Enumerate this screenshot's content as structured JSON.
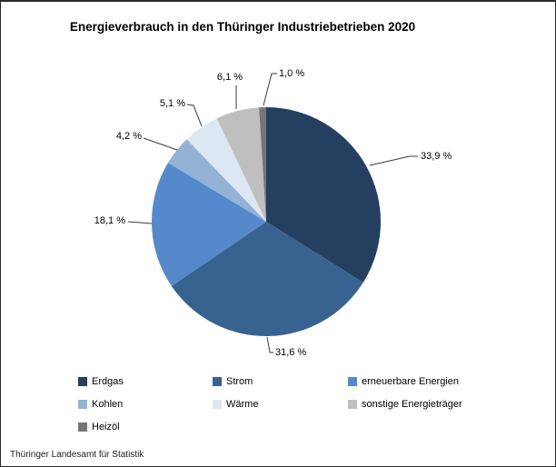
{
  "title": "Energieverbrauch in den Thüringer Industriebetrieben 2020",
  "footer": "Thüringer Landesamt für Statistik",
  "chart_data": {
    "type": "pie",
    "title": "Energieverbrauch in den Thüringer Industriebetrieben 2020",
    "unit": "%",
    "start_angle_deg": 0,
    "direction": "clockwise",
    "legend_position": "bottom",
    "source": "Thüringer Landesamt für Statistik",
    "series": [
      {
        "name": "Erdgas",
        "value": 33.9,
        "label": "33,9 %",
        "color": "#243F5F"
      },
      {
        "name": "Strom",
        "value": 31.6,
        "label": "31,6 %",
        "color": "#386290"
      },
      {
        "name": "erneuerbare Energien",
        "value": 18.1,
        "label": "18,1 %",
        "color": "#548ACB"
      },
      {
        "name": "Kohlen",
        "value": 4.2,
        "label": "4,2 %",
        "color": "#93B2D6"
      },
      {
        "name": "Wärme",
        "value": 5.1,
        "label": "5,1 %",
        "color": "#DDE7F2"
      },
      {
        "name": "sonstige Energieträger",
        "value": 6.1,
        "label": "6,1 %",
        "color": "#BFBFBF"
      },
      {
        "name": "Heizöl",
        "value": 1.0,
        "label": "1,0 %",
        "color": "#767676"
      }
    ]
  }
}
